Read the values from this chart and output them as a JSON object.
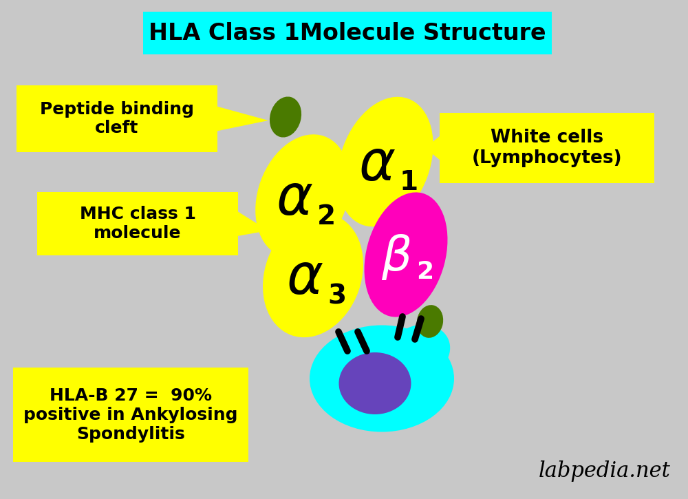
{
  "title": "HLA Class 1Molecule Structure",
  "title_bg": "#00FFFF",
  "background_color": "#C8C8C8",
  "label_peptide": "Peptide binding\ncleft",
  "label_mhc": "MHC class 1\nmolecule",
  "label_white": "White cells\n(Lymphocytes)",
  "label_hla": "HLA-B 27 =  90%\npositive in Ankylosing\nSpondylitis",
  "label_footer": "labpedia.net",
  "color_yellow": "#FFFF00",
  "color_magenta": "#FF00BB",
  "color_cyan": "#00FFFF",
  "color_green_dark": "#4A7A00",
  "color_purple": "#6644BB",
  "color_black": "#000000",
  "color_white": "#FFFFFF",
  "color_label_bg": "#FFFF00",
  "color_bg": "#C8C8C8"
}
